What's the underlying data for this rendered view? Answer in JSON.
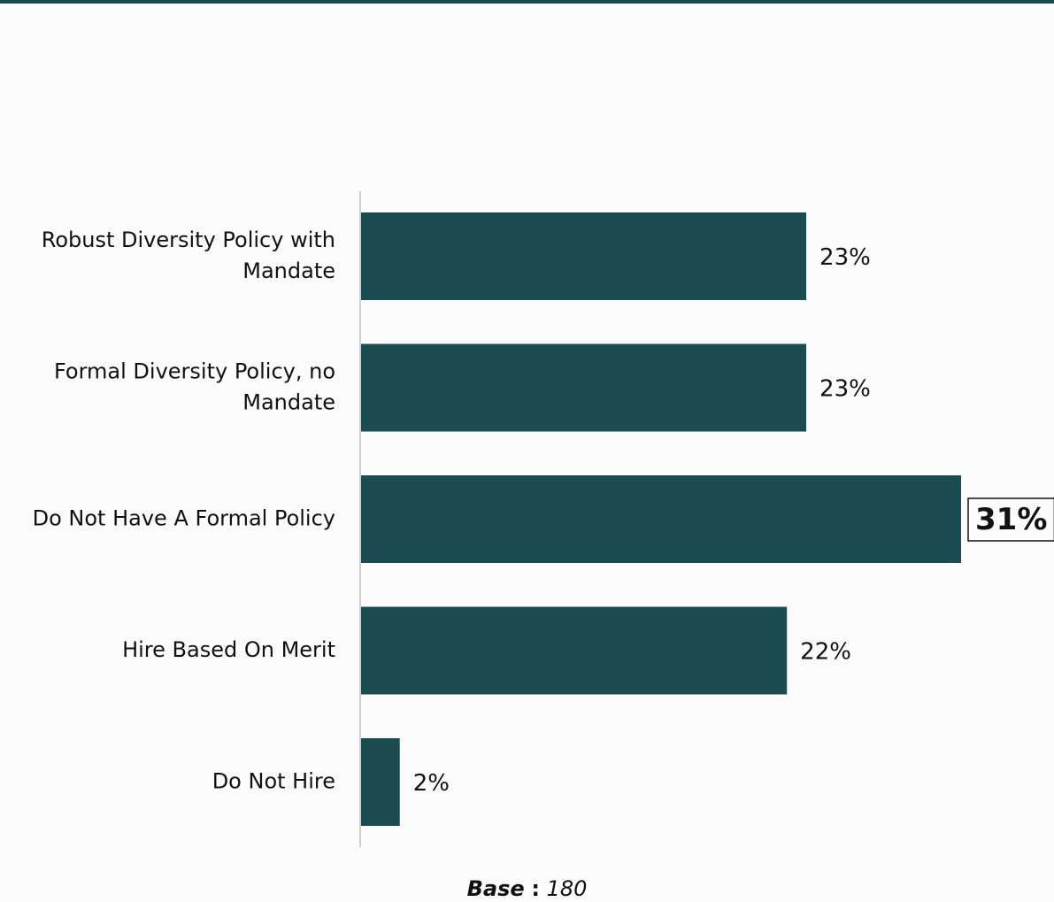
{
  "colors": {
    "bar": "#1a4c52",
    "axis": "#d0d0d0",
    "highlight_border": "#111111"
  },
  "chart_data": {
    "type": "bar",
    "orientation": "horizontal",
    "categories": [
      [
        "Robust Diversity Policy with",
        "Mandate"
      ],
      [
        "Formal Diversity Policy, no",
        "Mandate"
      ],
      [
        "Do Not Have A Formal Policy"
      ],
      [
        "Hire Based On Merit"
      ],
      [
        "Do Not Hire"
      ]
    ],
    "values": [
      23,
      23,
      31,
      22,
      2
    ],
    "data_labels": [
      "23%",
      "23%",
      "31%",
      "22%",
      "2%"
    ],
    "highlight_index": 2,
    "xlim": [
      0,
      31
    ],
    "grid": false,
    "legend": "none"
  },
  "footer": {
    "base_word": "Base",
    "base_sep": ":",
    "base_value": "180"
  }
}
